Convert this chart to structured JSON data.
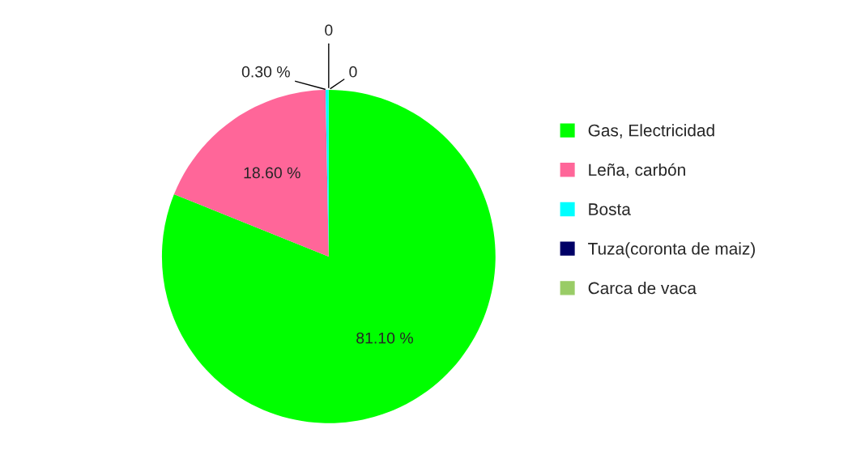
{
  "chart_data": {
    "type": "pie",
    "categories": [
      "Gas, Electricidad",
      "Leña, carbón",
      "Bosta",
      "Tuza(coronta de maiz)",
      "Carca de vaca"
    ],
    "values": [
      81.1,
      18.6,
      0.3,
      0,
      0
    ],
    "colors": [
      "#00ff00",
      "#ff6699",
      "#00ffff",
      "#000066",
      "#99cc66"
    ],
    "value_labels": [
      "81.10 %",
      "18.60 %",
      "0.30 %",
      "0",
      "0"
    ],
    "legend": "right"
  }
}
